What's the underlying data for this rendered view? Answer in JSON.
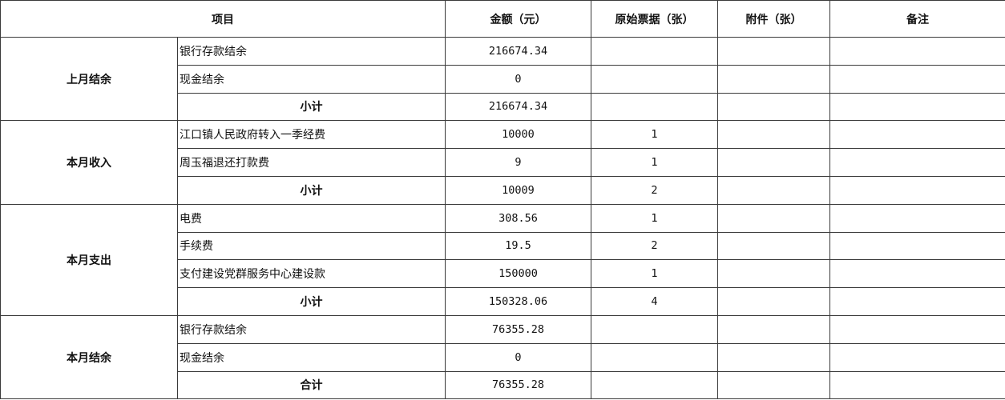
{
  "headers": [
    "项目",
    "金额（元）",
    "原始票据（张）",
    "附件（张）",
    "备注"
  ],
  "groups": [
    {
      "name": "上月结余",
      "rows": [
        {
          "item": "银行存款结余",
          "amount": "216674.34",
          "receipts": "",
          "attachments": "",
          "notes": ""
        },
        {
          "item": "现金结余",
          "amount": "0",
          "receipts": "",
          "attachments": "",
          "notes": ""
        },
        {
          "item": "小计",
          "subtotal": true,
          "amount": "216674.34",
          "receipts": "",
          "attachments": "",
          "notes": ""
        }
      ]
    },
    {
      "name": "本月收入",
      "rows": [
        {
          "item": "江口镇人民政府转入一季经费",
          "amount": "10000",
          "receipts": "1",
          "attachments": "",
          "notes": ""
        },
        {
          "item": "周玉福退还打款费",
          "amount": "9",
          "receipts": "1",
          "attachments": "",
          "notes": ""
        },
        {
          "item": "小计",
          "subtotal": true,
          "amount": "10009",
          "receipts": "2",
          "attachments": "",
          "notes": ""
        }
      ]
    },
    {
      "name": "本月支出",
      "rows": [
        {
          "item": "电费",
          "amount": "308.56",
          "receipts": "1",
          "attachments": "",
          "notes": ""
        },
        {
          "item": "手续费",
          "amount": "19.5",
          "receipts": "2",
          "attachments": "",
          "notes": ""
        },
        {
          "item": "支付建设党群服务中心建设款",
          "amount": "150000",
          "receipts": "1",
          "attachments": "",
          "notes": ""
        },
        {
          "item": "小计",
          "subtotal": true,
          "amount": "150328.06",
          "receipts": "4",
          "attachments": "",
          "notes": ""
        }
      ]
    },
    {
      "name": "本月结余",
      "rows": [
        {
          "item": "银行存款结余",
          "amount": "76355.28",
          "receipts": "",
          "attachments": "",
          "notes": ""
        },
        {
          "item": "现金结余",
          "amount": "0",
          "receipts": "",
          "attachments": "",
          "notes": ""
        },
        {
          "item": "合计",
          "subtotal": true,
          "amount": "76355.28",
          "receipts": "",
          "attachments": "",
          "notes": ""
        }
      ]
    }
  ]
}
